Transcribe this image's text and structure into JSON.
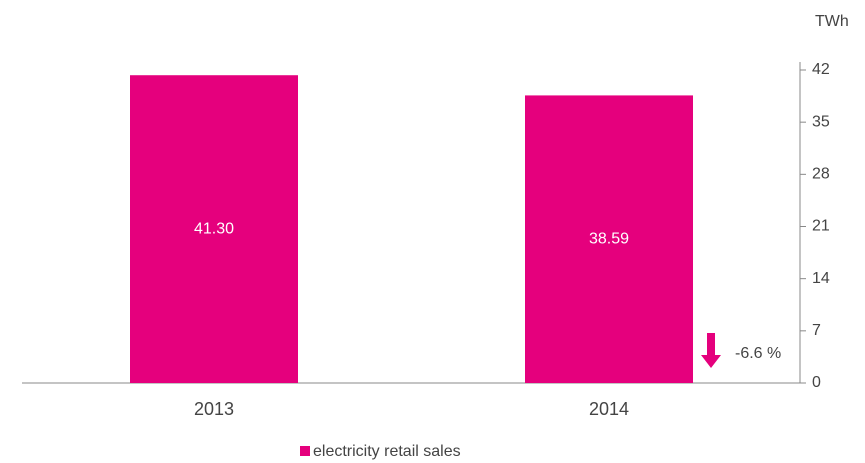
{
  "chart_data": {
    "type": "bar",
    "axis_label": "TWh",
    "categories": [
      "2013",
      "2014"
    ],
    "values": [
      41.3,
      38.59
    ],
    "value_labels": [
      "41.30",
      "38.59"
    ],
    "color": "#e5007d",
    "series_name": "electricity retail sales",
    "annotation": "-6.6 %",
    "ylim": [
      0,
      42
    ],
    "yticks": [
      0,
      7,
      14,
      21,
      28,
      35,
      42
    ]
  }
}
